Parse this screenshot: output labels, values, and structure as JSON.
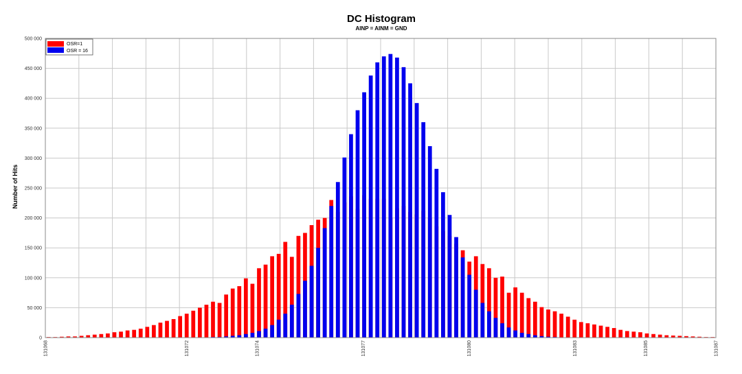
{
  "chart_data": {
    "type": "bar",
    "title": "DC Histogram",
    "subtitle": "AINP = AINM = GND",
    "ylabel": "Number of Hits",
    "xlabel": "",
    "ylim": [
      0,
      500000
    ],
    "yticks": [
      0,
      50000,
      100000,
      150000,
      200000,
      250000,
      300000,
      350000,
      400000,
      450000,
      500000
    ],
    "ytick_labels": [
      "0",
      "50 000",
      "100 000",
      "150 000",
      "200 000",
      "250 000",
      "300 000",
      "350 000",
      "400 000",
      "450 000",
      "500 000"
    ],
    "xlim": [
      131068,
      131087
    ],
    "xtick_labels": [
      {
        "value": 131068,
        "label": "131068"
      },
      {
        "value": 131072,
        "label": "131072"
      },
      {
        "value": 131074,
        "label": "131074"
      },
      {
        "value": 131077,
        "label": "131077"
      },
      {
        "value": 131080,
        "label": "131080"
      },
      {
        "value": 131083,
        "label": "131083"
      },
      {
        "value": 131085,
        "label": "131085"
      },
      {
        "value": 131087,
        "label": "131087"
      }
    ],
    "grid": true,
    "legend_position": "top-left",
    "series": [
      {
        "name": "OSR=1",
        "color": "#ff0000",
        "values": [
          1000,
          1000,
          1500,
          2000,
          2000,
          3000,
          4000,
          5000,
          6000,
          7000,
          9000,
          10000,
          12000,
          13000,
          15000,
          18000,
          21000,
          25000,
          28000,
          31000,
          36000,
          40000,
          45000,
          50000,
          55000,
          60000,
          58000,
          72000,
          82000,
          86000,
          99000,
          90000,
          116000,
          122000,
          136000,
          140000,
          160000,
          135000,
          170000,
          175000,
          188000,
          197000,
          200000,
          230000,
          210000,
          226000,
          236000,
          215000,
          238000,
          232000,
          232000,
          232000,
          200000,
          216000,
          220000,
          210000,
          206000,
          212000,
          200000,
          186000,
          178000,
          170000,
          157000,
          146000,
          127000,
          136000,
          123000,
          116000,
          100000,
          102000,
          75000,
          84000,
          75000,
          66000,
          60000,
          51000,
          47000,
          44000,
          40000,
          35000,
          30000,
          26000,
          24000,
          22000,
          20000,
          18000,
          16000,
          13000,
          11000,
          10000,
          9000,
          7000,
          6000,
          5000,
          4000,
          3500,
          3000,
          2500,
          2000,
          1500,
          1000,
          1000
        ]
      },
      {
        "name": "OSR = 16",
        "color": "#0000ee",
        "values": [
          0,
          0,
          0,
          0,
          0,
          0,
          0,
          0,
          0,
          0,
          0,
          0,
          0,
          0,
          0,
          0,
          0,
          0,
          0,
          0,
          0,
          0,
          0,
          0,
          500,
          1000,
          1000,
          2000,
          3000,
          4000,
          6000,
          8000,
          11000,
          15000,
          21000,
          30000,
          40000,
          55000,
          73000,
          95000,
          120000,
          150000,
          183000,
          220000,
          260000,
          301000,
          340000,
          380000,
          410000,
          438000,
          460000,
          470000,
          474000,
          468000,
          452000,
          425000,
          392000,
          360000,
          320000,
          282000,
          243000,
          205000,
          168000,
          134000,
          105000,
          80000,
          58000,
          44000,
          33000,
          24000,
          17000,
          12000,
          8000,
          6000,
          4000,
          2500,
          1500,
          1000,
          500,
          0,
          0,
          0,
          0,
          0,
          0,
          0,
          0,
          0,
          0,
          0,
          0,
          0,
          0,
          0,
          0,
          0,
          0,
          0,
          0,
          0,
          0,
          0
        ]
      }
    ]
  }
}
